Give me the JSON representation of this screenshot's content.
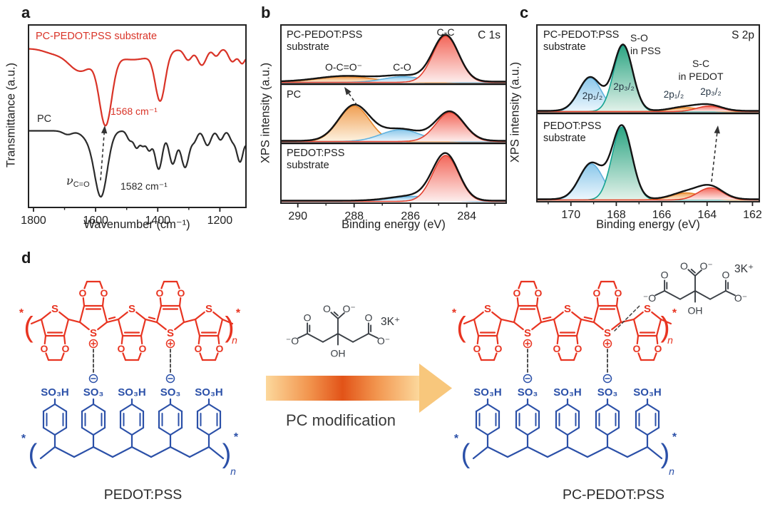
{
  "figure": {
    "panel_labels": {
      "a": "a",
      "b": "b",
      "c": "c",
      "d": "d"
    }
  },
  "chart_data": [
    {
      "id": "ftir",
      "type": "line",
      "panel": "a",
      "xlabel": "Wavenumber (cm⁻¹)",
      "ylabel": "Transmittance (a.u.)",
      "x_range": [
        1816,
        1116
      ],
      "x_ticks": [
        1800,
        1600,
        1400,
        1200
      ],
      "x_minor_ticks": [
        1700,
        1500,
        1300
      ],
      "nu": "ν",
      "nu_sub": "C=O",
      "series": [
        {
          "name": "PC-PEDOT:PSS substrate",
          "color": "#d93327",
          "baseline": 0.87,
          "annotation": "1568 cm⁻¹",
          "dips": [
            [
              1740,
              30,
              0.02
            ],
            [
              1650,
              40,
              0.12
            ],
            [
              1568,
              20,
              0.38
            ],
            [
              1480,
              70,
              0.06
            ],
            [
              1392,
              16,
              0.26
            ],
            [
              1302,
              12,
              0.06
            ],
            [
              1258,
              14,
              0.09
            ],
            [
              1212,
              10,
              0.04
            ],
            [
              1160,
              12,
              0.07
            ],
            [
              1128,
              11,
              0.08
            ],
            [
              1102,
              8,
              0.06
            ]
          ]
        },
        {
          "name": "PC",
          "color": "#2b2b2b",
          "baseline": 0.42,
          "annotation": "1582 cm⁻¹",
          "dips": [
            [
              1690,
              15,
              0.02
            ],
            [
              1615,
              25,
              0.05
            ],
            [
              1582,
              20,
              0.34
            ],
            [
              1490,
              9,
              0.05
            ],
            [
              1468,
              9,
              0.09
            ],
            [
              1448,
              8,
              0.07
            ],
            [
              1428,
              9,
              0.1
            ],
            [
              1397,
              12,
              0.21
            ],
            [
              1352,
              12,
              0.18
            ],
            [
              1312,
              13,
              0.2
            ],
            [
              1282,
              9,
              0.05
            ],
            [
              1240,
              11,
              0.08
            ],
            [
              1198,
              9,
              0.05
            ],
            [
              1160,
              9,
              0.05
            ],
            [
              1135,
              11,
              0.17
            ],
            [
              1106,
              8,
              0.1
            ]
          ]
        }
      ]
    },
    {
      "id": "xps-c1s",
      "type": "area",
      "panel": "b",
      "title": "C 1s",
      "xlabel": "Binding energy (eV)",
      "ylabel": "XPS intensity (a.u.)",
      "x_range": [
        290.6,
        282.6
      ],
      "x_ticks": [
        290,
        288,
        286,
        284
      ],
      "x_minor_ticks": [
        289,
        287,
        285,
        283
      ],
      "peak_labels": {
        "ocoo": "O-C=O⁻",
        "co": "C-O",
        "cc": "C-C"
      },
      "panels": [
        {
          "name": "PC-PEDOT:PSS\nsubstrate",
          "peaks": [
            {
              "assign": "O-C=O⁻",
              "center": 288.3,
              "sigma": 1.0,
              "amp": 0.115,
              "color": "orange"
            },
            {
              "assign": "C-O",
              "center": 286.25,
              "sigma": 0.7,
              "amp": 0.115,
              "color": "blue"
            },
            {
              "assign": "C-C",
              "center": 284.75,
              "sigma": 0.46,
              "amp": 0.94,
              "color": "red"
            }
          ]
        },
        {
          "name": "PC",
          "peaks": [
            {
              "assign": "O-C=O⁻",
              "center": 288.0,
              "sigma": 0.55,
              "amp": 0.72,
              "color": "orange"
            },
            {
              "assign": "C-O",
              "center": 286.35,
              "sigma": 0.7,
              "amp": 0.24,
              "color": "blue"
            },
            {
              "assign": "C-C",
              "center": 284.6,
              "sigma": 0.5,
              "amp": 0.59,
              "color": "red"
            }
          ]
        },
        {
          "name": "PEDOT:PSS\nsubstrate",
          "peaks": [
            {
              "assign": "C-O",
              "center": 285.9,
              "sigma": 0.8,
              "amp": 0.1,
              "color": "blue"
            },
            {
              "assign": "C-C",
              "center": 284.75,
              "sigma": 0.46,
              "amp": 0.92,
              "color": "red"
            }
          ]
        }
      ]
    },
    {
      "id": "xps-s2p",
      "type": "area",
      "panel": "c",
      "title": "S 2p",
      "xlabel": "Binding energy (eV)",
      "ylabel": "XPS intensity (a.u.)",
      "x_range": [
        171.5,
        161.7
      ],
      "x_ticks": [
        170,
        168,
        166,
        164,
        162
      ],
      "x_minor_ticks": [
        171,
        169,
        167,
        165,
        163
      ],
      "peak_labels": {
        "so": "S-O\nin PSS",
        "sc": "S-C\nin PEDOT",
        "p12": "2p₁/₂",
        "p32": "2p₃/₂"
      },
      "panels": [
        {
          "name": "PC-PEDOT:PSS\nsubstrate",
          "peaks": [
            {
              "assign": "S-O 2p₁/₂",
              "center": 169.15,
              "sigma": 0.5,
              "amp": 0.43,
              "color": "blue"
            },
            {
              "assign": "S-O 2p₃/₂",
              "center": 167.7,
              "sigma": 0.42,
              "amp": 0.84,
              "color": "green"
            },
            {
              "assign": "S-C 2p₁/₂",
              "center": 164.95,
              "sigma": 0.65,
              "amp": 0.05,
              "color": "orange"
            },
            {
              "assign": "S-C 2p₃/₂",
              "center": 163.9,
              "sigma": 0.55,
              "amp": 0.07,
              "color": "red"
            }
          ]
        },
        {
          "name": "PEDOT:PSS\nsubstrate",
          "peaks": [
            {
              "assign": "S-O 2p₁/₂",
              "center": 169.1,
              "sigma": 0.52,
              "amp": 0.46,
              "color": "blue"
            },
            {
              "assign": "S-O 2p₃/₂",
              "center": 167.75,
              "sigma": 0.44,
              "amp": 0.93,
              "color": "green"
            },
            {
              "assign": "S-C 2p₁/₂",
              "center": 164.9,
              "sigma": 0.65,
              "amp": 0.09,
              "color": "orange"
            },
            {
              "assign": "S-C 2p₃/₂",
              "center": 163.85,
              "sigma": 0.55,
              "amp": 0.155,
              "color": "red"
            }
          ]
        }
      ]
    }
  ],
  "panel_d": {
    "caption_left": "PEDOT:PSS",
    "caption_right": "PC-PEDOT:PSS",
    "arrow_caption": "PC modification",
    "counter_ion": "3K⁺",
    "atoms": {
      "S": "S",
      "O": "O",
      "OH": "OH",
      "so3h": "SO₃H",
      "so3": "SO₃",
      "star": "*",
      "n": "n",
      "O_minus": "O⁻",
      "minus_O": "⁻O"
    },
    "colors": {
      "pedot": "#e83421",
      "pss": "#2b50a8",
      "citrate": "#3b4046",
      "arrow_edge": "#fcd89c",
      "arrow_mid": "#e25318",
      "arrow_head": "#f8c77c"
    }
  }
}
